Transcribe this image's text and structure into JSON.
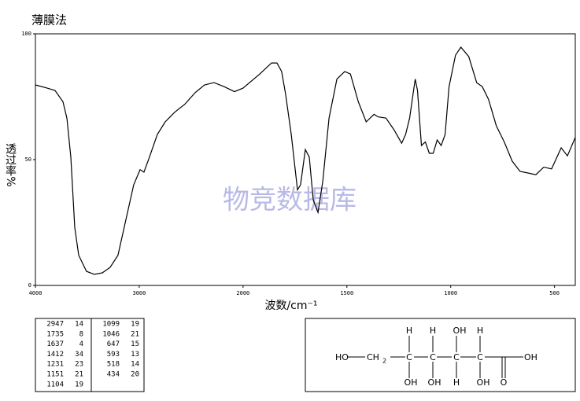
{
  "chart_data": {
    "type": "line",
    "title": "薄膜法",
    "x_label": "波数/cm⁻¹",
    "y_label": "透过率%",
    "watermark": "物竞数据库",
    "xlim": [
      4000,
      400
    ],
    "xticks": [
      4000,
      3000,
      2000,
      1500,
      1000,
      500
    ],
    "ylim": [
      0,
      100
    ],
    "yticks": [
      0,
      50,
      100
    ],
    "grid": false,
    "series": [
      {
        "name": "spectrum",
        "color": "#000000",
        "x": [
          4000,
          3886,
          3811,
          3735,
          3697,
          3659,
          3621,
          3583,
          3508,
          3432,
          3356,
          3280,
          3205,
          3129,
          3053,
          2992,
          2955,
          2902,
          2826,
          2750,
          2659,
          2561,
          2462,
          2371,
          2280,
          2182,
          2083,
          2000,
          1920,
          1863,
          1837,
          1814,
          1795,
          1768,
          1738,
          1723,
          1700,
          1681,
          1662,
          1639,
          1616,
          1586,
          1548,
          1510,
          1483,
          1445,
          1407,
          1369,
          1350,
          1312,
          1274,
          1236,
          1217,
          1198,
          1171,
          1160,
          1141,
          1122,
          1103,
          1084,
          1065,
          1046,
          1027,
          1008,
          977,
          951,
          913,
          875,
          848,
          818,
          780,
          742,
          704,
          666,
          628,
          590,
          552,
          514,
          468,
          438,
          400
        ],
        "values": [
          79.7,
          78.4,
          77.5,
          73,
          66.5,
          51,
          23,
          12,
          5.6,
          4.4,
          5,
          7.2,
          12,
          26,
          40,
          46,
          45,
          51,
          60,
          65,
          68.8,
          72,
          76.6,
          79.7,
          80.6,
          79,
          77,
          78.4,
          84,
          88.4,
          88.4,
          85,
          76,
          60,
          38,
          40,
          54,
          51,
          34,
          29,
          41.5,
          66.5,
          82,
          85,
          84,
          73,
          65,
          68,
          67,
          66.5,
          62,
          56.5,
          60,
          66.5,
          82,
          77.5,
          55.6,
          57,
          52.5,
          52.5,
          57.8,
          55.6,
          60,
          79,
          91.5,
          94.7,
          91,
          80.6,
          79,
          74,
          63.4,
          57,
          49.4,
          45.3,
          44.7,
          44,
          47,
          46.3,
          54.7,
          51.5,
          58.8
        ]
      }
    ]
  },
  "peak_table": {
    "columns": [
      [
        [
          "2947",
          "14"
        ],
        [
          "1735",
          "8"
        ],
        [
          "1637",
          "4"
        ],
        [
          "1412",
          "34"
        ],
        [
          "1231",
          "23"
        ],
        [
          "1151",
          "21"
        ],
        [
          "1104",
          "19"
        ]
      ],
      [
        [
          "1099",
          "19"
        ],
        [
          "1046",
          "21"
        ],
        [
          "647",
          "15"
        ],
        [
          "593",
          "13"
        ],
        [
          "518",
          "14"
        ],
        [
          "434",
          "20"
        ]
      ]
    ]
  },
  "structure": {
    "labels": [
      "HO",
      "CH",
      "2",
      "C",
      "C",
      "C",
      "C",
      "H",
      "H",
      "OH",
      "H",
      "OH",
      "OH",
      "H",
      "OH",
      "O",
      "OH"
    ]
  }
}
